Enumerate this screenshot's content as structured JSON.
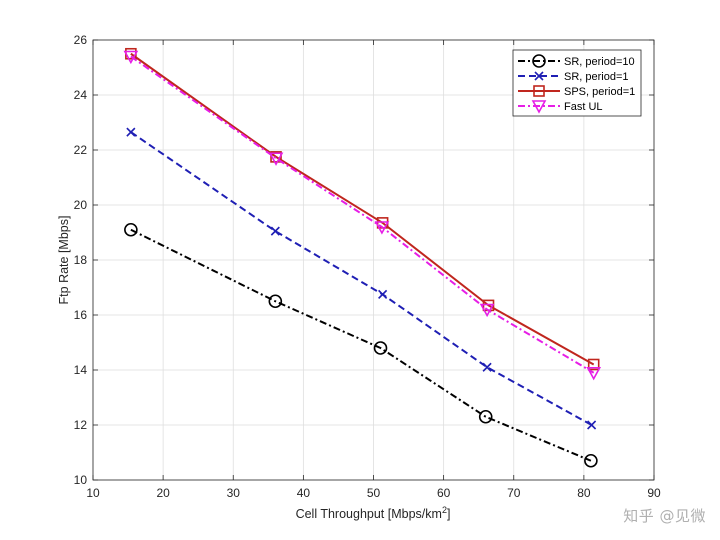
{
  "chart_data": {
    "type": "line",
    "title": "",
    "xlabel": "Cell Throughput [Mbps/km",
    "xlabel_sup": "2",
    "xlabel_tail": "]",
    "ylabel": "Ftp Rate [Mbps]",
    "xlim": [
      10,
      90
    ],
    "ylim": [
      10,
      26
    ],
    "xticks": [
      10,
      20,
      30,
      40,
      50,
      60,
      70,
      80,
      90
    ],
    "yticks": [
      10,
      12,
      14,
      16,
      18,
      20,
      22,
      24,
      26
    ],
    "grid": true,
    "legend_position": "top-right",
    "series": [
      {
        "name": "SR, period=10",
        "color": "#000000",
        "dash": "dashdot",
        "marker": "circle",
        "x": [
          15.4,
          36.0,
          51.0,
          66.0,
          81.0
        ],
        "y": [
          19.1,
          16.5,
          14.8,
          12.3,
          10.7
        ]
      },
      {
        "name": "SR, period=1",
        "color": "#1f1fb4",
        "dash": "dashed",
        "marker": "x",
        "x": [
          15.4,
          36.0,
          51.3,
          66.2,
          81.1
        ],
        "y": [
          22.65,
          19.05,
          16.75,
          14.1,
          12.0
        ]
      },
      {
        "name": "SPS, period=1",
        "color": "#c0261e",
        "dash": "solid",
        "marker": "square",
        "x": [
          15.4,
          36.1,
          51.3,
          66.4,
          81.4
        ],
        "y": [
          25.5,
          21.75,
          19.35,
          16.35,
          14.2
        ]
      },
      {
        "name": "Fast UL",
        "color": "#e61ee6",
        "dash": "dashdot",
        "marker": "triangle-down",
        "x": [
          15.4,
          36.1,
          51.2,
          66.2,
          81.4
        ],
        "y": [
          25.4,
          21.7,
          19.2,
          16.2,
          13.9
        ]
      }
    ]
  },
  "watermark": "知乎 @见微"
}
